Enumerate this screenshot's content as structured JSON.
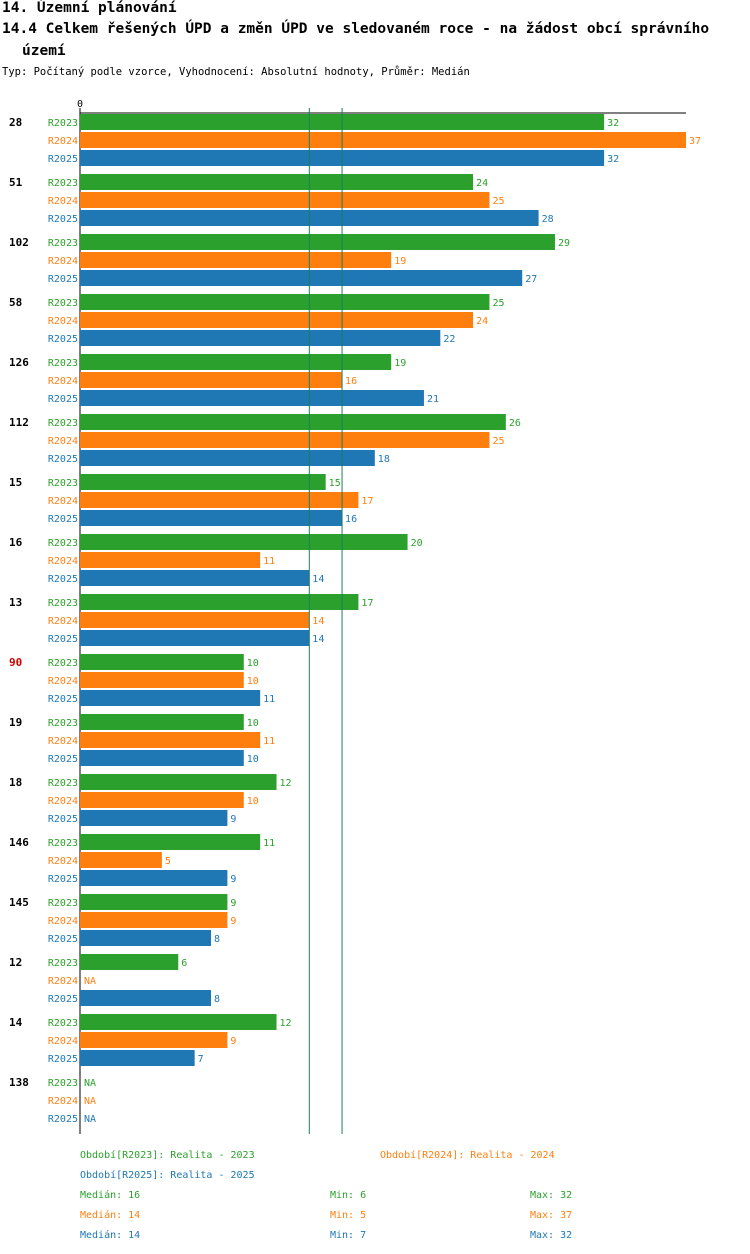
{
  "header": {
    "title_line1": "14. Územní plánování",
    "title_line2": "14.4 Celkem řešených ÚPD a změn ÚPD ve sledovaném roce - na žádost obcí správního",
    "title_line3": "území",
    "subtitle": "Typ: Počítaný podle vzorce, Vyhodnocení: Absolutní hodnoty, Průměr: Medián"
  },
  "colors": {
    "R2023": "#2ca02c",
    "R2024": "#ff7f0e",
    "R2025": "#1f77b4",
    "highlight_label": "#cc0000",
    "median_line": "#1a7f5a"
  },
  "chart_data": {
    "type": "bar",
    "orientation": "horizontal",
    "x_axis_tick": "0",
    "xlim": [
      0,
      37
    ],
    "series_names": [
      "R2023",
      "R2024",
      "R2025"
    ],
    "categories": [
      "28",
      "51",
      "102",
      "58",
      "126",
      "112",
      "15",
      "16",
      "13",
      "90",
      "19",
      "18",
      "146",
      "145",
      "12",
      "14",
      "138"
    ],
    "highlighted_category": "90",
    "na_label": "NA",
    "series": [
      {
        "name": "R2023",
        "values": [
          32,
          24,
          29,
          25,
          19,
          26,
          15,
          20,
          17,
          10,
          10,
          12,
          11,
          9,
          6,
          12,
          null
        ]
      },
      {
        "name": "R2024",
        "values": [
          37,
          25,
          19,
          24,
          16,
          25,
          17,
          11,
          14,
          10,
          11,
          10,
          5,
          9,
          null,
          9,
          null
        ]
      },
      {
        "name": "R2025",
        "values": [
          32,
          28,
          27,
          22,
          21,
          18,
          16,
          14,
          14,
          11,
          10,
          9,
          9,
          8,
          8,
          7,
          null
        ]
      }
    ],
    "reference_lines": [
      14,
      16
    ]
  },
  "legend": {
    "period_2023": "Období[R2023]: Realita - 2023",
    "period_2024": "Období[R2024]: Realita - 2024",
    "period_2025": "Období[R2025]: Realita - 2025",
    "stats": [
      {
        "median": "Medián: 16",
        "min": "Min: 6",
        "max": "Max: 32"
      },
      {
        "median": "Medián: 14",
        "min": "Min: 5",
        "max": "Max: 37"
      },
      {
        "median": "Medián: 14",
        "min": "Min: 7",
        "max": "Max: 32"
      }
    ]
  }
}
